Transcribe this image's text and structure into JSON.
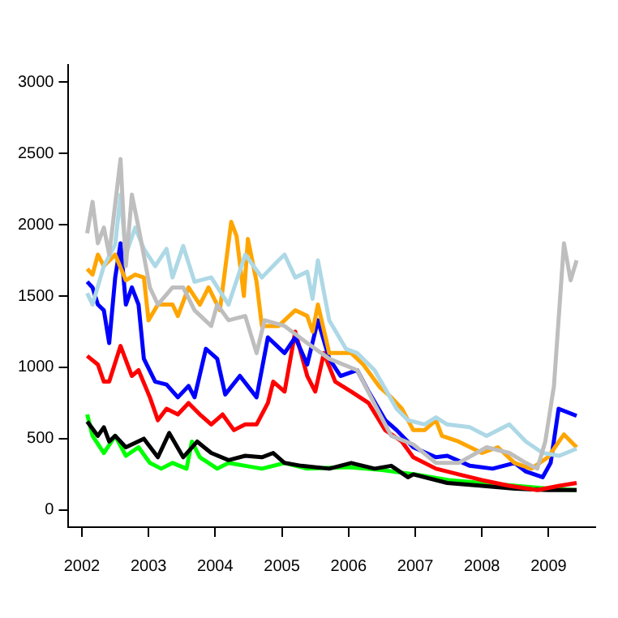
{
  "chart_data": {
    "type": "line",
    "xlim": [
      2001.8,
      2009.7
    ],
    "xticks": [
      2002,
      2003,
      2004,
      2005,
      2006,
      2007,
      2008,
      2009
    ],
    "ylim": [
      -120,
      3120
    ],
    "yticks": [
      0,
      500,
      1000,
      1500,
      2000,
      2500,
      3000
    ],
    "grid": false,
    "legend": false,
    "marker": "none",
    "series": [
      {
        "color": "#bebebe",
        "x": [
          2002.08,
          2002.16,
          2002.24,
          2002.33,
          2002.41,
          2002.58,
          2002.66,
          2002.75,
          2002.85,
          2003.02,
          2003.14,
          2003.36,
          2003.52,
          2003.69,
          2003.94,
          2004.03,
          2004.2,
          2004.45,
          2004.62,
          2004.74,
          2005.04,
          2005.38,
          2005.71,
          2006.13,
          2006.47,
          2006.64,
          2006.97,
          2007.31,
          2007.65,
          2008.07,
          2008.41,
          2008.66,
          2008.83,
          2008.95,
          2009.08,
          2009.23,
          2009.33,
          2009.42
        ],
        "values": [
          1940,
          2160,
          1870,
          1980,
          1790,
          2460,
          1710,
          2210,
          1980,
          1560,
          1440,
          1560,
          1560,
          1400,
          1290,
          1440,
          1330,
          1360,
          1100,
          1330,
          1290,
          1170,
          1060,
          980,
          670,
          520,
          460,
          330,
          330,
          440,
          400,
          330,
          290,
          480,
          870,
          1870,
          1610,
          1750
        ]
      },
      {
        "color": "#add8e6",
        "x": [
          2002.08,
          2002.16,
          2002.33,
          2002.5,
          2002.58,
          2002.66,
          2002.8,
          2002.93,
          2003.1,
          2003.27,
          2003.36,
          2003.52,
          2003.69,
          2003.94,
          2004.2,
          2004.45,
          2004.7,
          2004.95,
          2005.04,
          2005.2,
          2005.38,
          2005.46,
          2005.54,
          2005.71,
          2005.96,
          2006.13,
          2006.39,
          2006.72,
          2006.89,
          2007.14,
          2007.31,
          2007.48,
          2007.82,
          2008.07,
          2008.41,
          2008.66,
          2008.91,
          2009.16,
          2009.42
        ],
        "values": [
          1520,
          1440,
          1710,
          1860,
          2210,
          1790,
          1980,
          1830,
          1710,
          1830,
          1630,
          1850,
          1600,
          1630,
          1440,
          1790,
          1630,
          1750,
          1790,
          1630,
          1670,
          1480,
          1750,
          1330,
          1130,
          1100,
          980,
          710,
          630,
          600,
          650,
          600,
          580,
          520,
          600,
          480,
          400,
          380,
          430
        ]
      },
      {
        "color": "#ffa500",
        "x": [
          2002.08,
          2002.16,
          2002.24,
          2002.33,
          2002.5,
          2002.66,
          2002.8,
          2002.93,
          2003.0,
          2003.14,
          2003.36,
          2003.44,
          2003.6,
          2003.77,
          2003.9,
          2004.07,
          2004.24,
          2004.32,
          2004.43,
          2004.49,
          2004.62,
          2004.7,
          2004.95,
          2005.2,
          2005.38,
          2005.46,
          2005.54,
          2005.71,
          2006.04,
          2006.22,
          2006.47,
          2006.64,
          2006.8,
          2006.97,
          2007.14,
          2007.31,
          2007.4,
          2007.65,
          2008.0,
          2008.24,
          2008.49,
          2008.74,
          2008.99,
          2009.23,
          2009.42
        ],
        "values": [
          1690,
          1650,
          1790,
          1710,
          1790,
          1610,
          1650,
          1630,
          1330,
          1440,
          1440,
          1360,
          1560,
          1440,
          1560,
          1400,
          2020,
          1920,
          1500,
          1900,
          1600,
          1290,
          1290,
          1400,
          1360,
          1250,
          1440,
          1100,
          1100,
          1020,
          860,
          790,
          710,
          560,
          560,
          630,
          520,
          480,
          400,
          440,
          330,
          290,
          370,
          530,
          440
        ]
      },
      {
        "color": "#0000ff",
        "x": [
          2002.08,
          2002.16,
          2002.24,
          2002.33,
          2002.41,
          2002.5,
          2002.58,
          2002.66,
          2002.75,
          2002.85,
          2002.93,
          2003.1,
          2003.27,
          2003.44,
          2003.6,
          2003.69,
          2003.86,
          2004.03,
          2004.15,
          2004.37,
          2004.62,
          2004.79,
          2005.04,
          2005.2,
          2005.38,
          2005.54,
          2005.71,
          2005.88,
          2006.13,
          2006.3,
          2006.55,
          2006.72,
          2006.97,
          2007.31,
          2007.48,
          2007.82,
          2008.16,
          2008.49,
          2008.66,
          2008.91,
          2009.03,
          2009.15,
          2009.42
        ],
        "values": [
          1600,
          1560,
          1440,
          1400,
          1170,
          1630,
          1870,
          1440,
          1560,
          1440,
          1060,
          900,
          880,
          790,
          870,
          790,
          1130,
          1060,
          810,
          940,
          790,
          1210,
          1100,
          1210,
          1020,
          1330,
          1060,
          940,
          980,
          830,
          630,
          560,
          440,
          370,
          380,
          310,
          290,
          330,
          270,
          230,
          330,
          710,
          660
        ]
      },
      {
        "color": "#ff0000",
        "x": [
          2002.08,
          2002.24,
          2002.33,
          2002.41,
          2002.58,
          2002.75,
          2002.85,
          2003.02,
          2003.14,
          2003.27,
          2003.44,
          2003.6,
          2003.77,
          2003.94,
          2004.11,
          2004.28,
          2004.45,
          2004.62,
          2004.79,
          2004.87,
          2005.04,
          2005.2,
          2005.38,
          2005.5,
          2005.63,
          2005.8,
          2006.04,
          2006.3,
          2006.55,
          2006.8,
          2006.97,
          2007.31,
          2007.65,
          2008.0,
          2008.41,
          2008.83,
          2009.16,
          2009.42
        ],
        "values": [
          1080,
          1020,
          900,
          900,
          1150,
          940,
          980,
          790,
          630,
          710,
          670,
          750,
          670,
          600,
          670,
          560,
          600,
          600,
          750,
          900,
          830,
          1250,
          940,
          830,
          1100,
          900,
          830,
          750,
          560,
          480,
          370,
          290,
          250,
          210,
          170,
          140,
          170,
          190
        ]
      },
      {
        "color": "#000000",
        "x": [
          2002.08,
          2002.24,
          2002.33,
          2002.41,
          2002.5,
          2002.66,
          2002.93,
          2003.14,
          2003.31,
          2003.52,
          2003.73,
          2003.94,
          2004.2,
          2004.45,
          2004.7,
          2004.87,
          2005.04,
          2005.29,
          2005.71,
          2006.04,
          2006.39,
          2006.64,
          2006.89,
          2006.97,
          2007.48,
          2008.0,
          2008.49,
          2008.99,
          2009.42
        ],
        "values": [
          620,
          520,
          580,
          480,
          520,
          440,
          500,
          370,
          540,
          370,
          480,
          400,
          350,
          380,
          370,
          400,
          330,
          310,
          290,
          330,
          290,
          310,
          230,
          250,
          190,
          170,
          150,
          140,
          140
        ]
      },
      {
        "color": "#00ff00",
        "x": [
          2002.08,
          2002.16,
          2002.33,
          2002.5,
          2002.66,
          2002.85,
          2003.02,
          2003.19,
          2003.36,
          2003.57,
          2003.65,
          2003.77,
          2004.03,
          2004.2,
          2004.45,
          2004.7,
          2005.04,
          2005.38,
          2006.0,
          2006.5,
          2007.0,
          2007.5,
          2008.0,
          2008.5,
          2009.0,
          2009.42
        ],
        "values": [
          670,
          520,
          400,
          520,
          380,
          440,
          330,
          290,
          330,
          290,
          480,
          370,
          290,
          330,
          310,
          290,
          330,
          290,
          300,
          280,
          250,
          210,
          190,
          170,
          150,
          140
        ]
      }
    ]
  }
}
